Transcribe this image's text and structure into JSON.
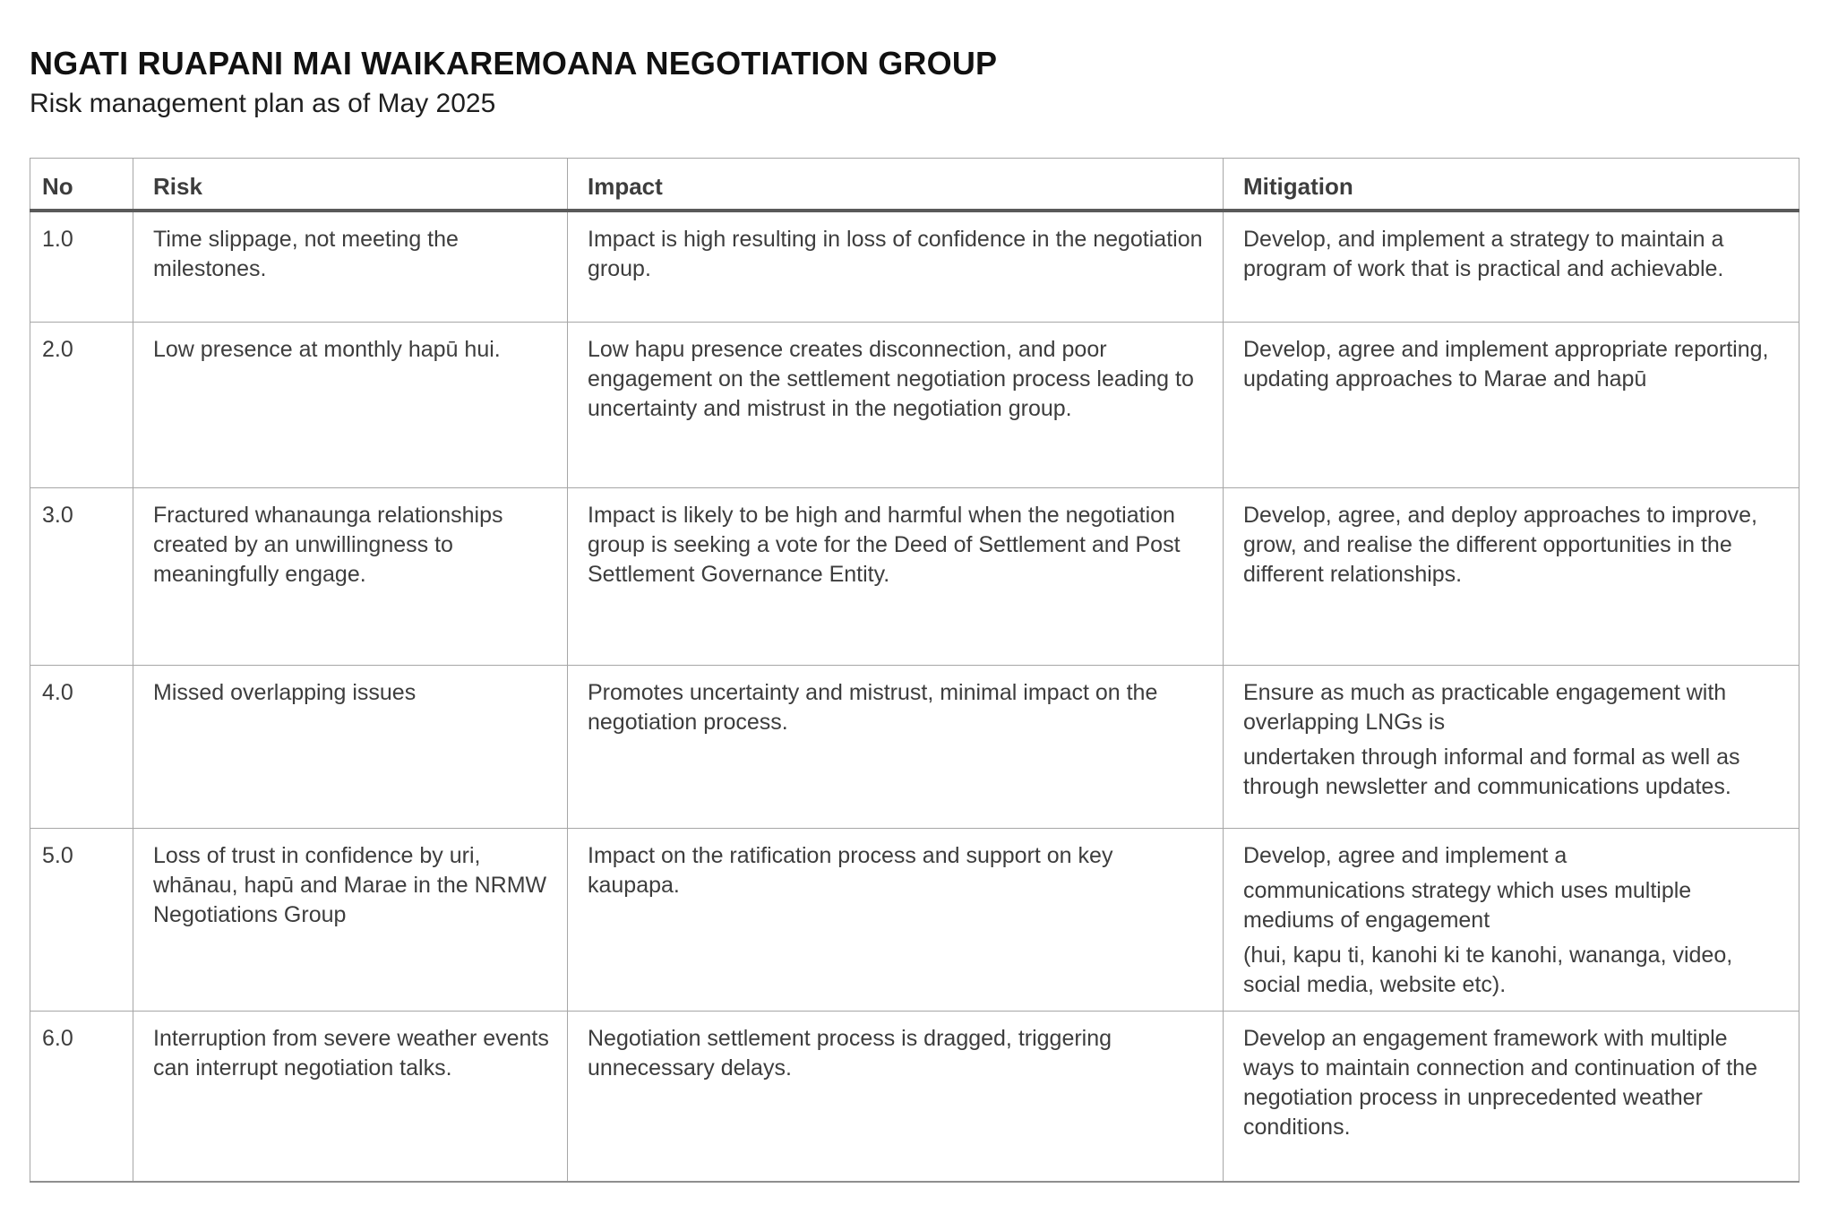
{
  "page": {
    "title": "NGATI RUAPANI MAI WAIKAREMOANA NEGOTIATION GROUP",
    "subtitle": "Risk management plan as of May 2025"
  },
  "colors": {
    "body_text": "#3d3d3d",
    "cell_border": "#a6a6a6",
    "header_rule": "#5a5a5a",
    "background": "#ffffff"
  },
  "table": {
    "headers": [
      "No",
      "Risk",
      "Impact",
      "Mitigation"
    ],
    "rows": [
      {
        "no": "1.0",
        "risk": [
          "Time slippage, not meeting the milestones."
        ],
        "impact": [
          "Impact is high resulting in loss of confidence in the negotiation group."
        ],
        "mitigation": [
          "Develop, and implement a strategy to maintain a program of work that is practical and achievable."
        ]
      },
      {
        "no": "2.0",
        "risk": [
          "Low presence at monthly hapū hui."
        ],
        "impact": [
          "Low hapu presence creates disconnection, and poor engagement on the settlement negotiation process leading to uncertainty and mistrust in the negotiation group."
        ],
        "mitigation": [
          "Develop, agree and implement appropriate reporting, updating approaches to Marae and hapū"
        ]
      },
      {
        "no": "3.0",
        "risk": [
          "Fractured whanaunga relationships created by an unwillingness to meaningfully engage."
        ],
        "impact": [
          "Impact is likely to be high and harmful when the negotiation group is seeking a vote for the Deed of Settlement and Post Settlement Governance Entity."
        ],
        "mitigation": [
          "Develop, agree, and deploy approaches to improve, grow, and realise the different opportunities in the different relationships."
        ]
      },
      {
        "no": "4.0",
        "risk": [
          "Missed overlapping issues"
        ],
        "impact": [
          "Promotes uncertainty and mistrust, minimal impact on the negotiation process."
        ],
        "mitigation": [
          "Ensure as much as practicable engagement with overlapping LNGs is",
          "undertaken through informal and formal as well as through newsletter and communications updates."
        ]
      },
      {
        "no": "5.0",
        "risk": [
          "Loss of trust in confidence by uri, whānau, hapū and Marae in the NRMW Negotiations Group"
        ],
        "impact": [
          "Impact on the ratification process and support on key kaupapa."
        ],
        "mitigation": [
          "Develop, agree and implement a",
          "communications strategy which uses multiple mediums of engagement",
          "(hui, kapu ti, kanohi ki te kanohi, wananga, video, social media, website etc)."
        ]
      },
      {
        "no": "6.0",
        "risk": [
          "Interruption from severe weather events can interrupt negotiation talks."
        ],
        "impact": [
          "Negotiation settlement process is dragged, triggering unnecessary delays."
        ],
        "mitigation": [
          "Develop an engagement framework with multiple ways to maintain connection and continuation of the negotiation process in unprecedented weather conditions."
        ]
      }
    ]
  }
}
